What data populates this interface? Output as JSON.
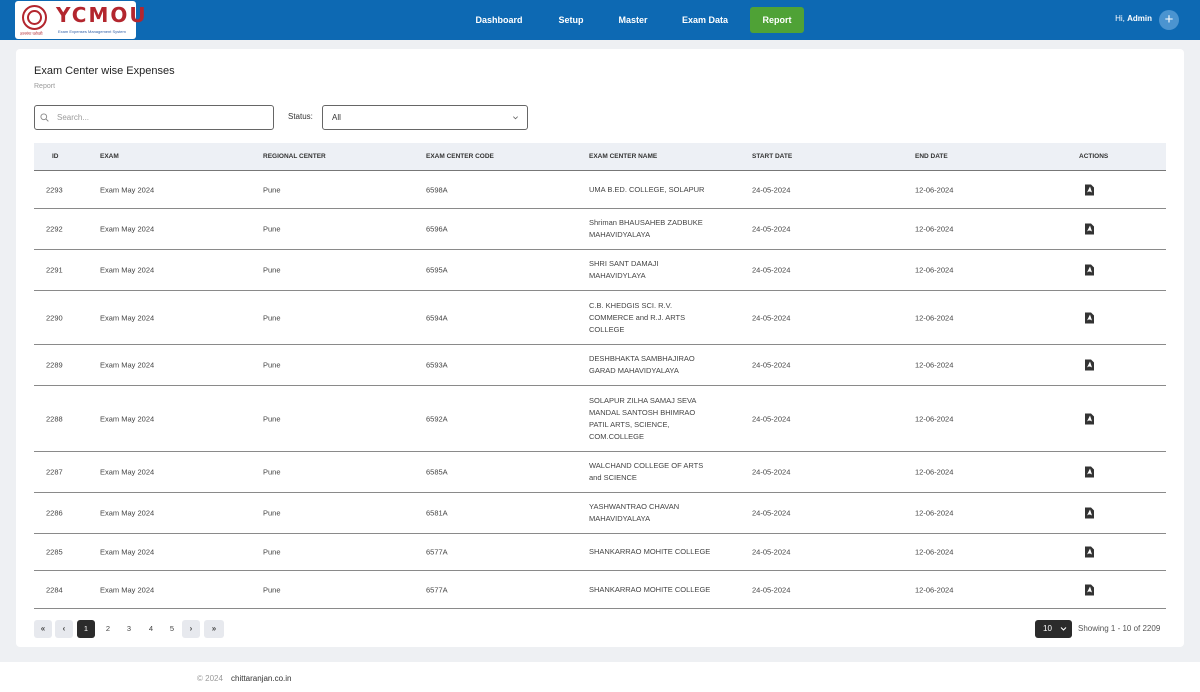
{
  "brand": {
    "title": "YCMOU",
    "subtitle": "Exam Expenses Management System",
    "devanagari": "ज्ञानगंगा घरोघरी",
    "accent": "#b3262e"
  },
  "nav": {
    "items": [
      {
        "label": "Dashboard"
      },
      {
        "label": "Setup"
      },
      {
        "label": "Master"
      },
      {
        "label": "Exam Data"
      },
      {
        "label": "Report"
      }
    ],
    "active": "Report",
    "greeting": "Hi,",
    "user": "Admin",
    "colors": {
      "bar": "#0d69b3",
      "active": "#4fa236"
    }
  },
  "page": {
    "title": "Exam Center wise Expenses",
    "subtitle": "Report"
  },
  "filters": {
    "search_placeholder": "Search...",
    "status_label": "Status:",
    "status_value": "All"
  },
  "table": {
    "headers": [
      "ID",
      "EXAM",
      "REGIONAL CENTER",
      "EXAM CENTER CODE",
      "EXAM CENTER NAME",
      "START DATE",
      "END DATE",
      "ACTIONS"
    ],
    "rows": [
      {
        "id": "2293",
        "exam": "Exam May 2024",
        "region": "Pune",
        "code": "6598A",
        "name": "UMA B.ED. COLLEGE, SOLAPUR",
        "start": "24-05-2024",
        "end": "12-06-2024",
        "action": "pdf-icon"
      },
      {
        "id": "2292",
        "exam": "Exam May 2024",
        "region": "Pune",
        "code": "6596A",
        "name": "Shriman BHAUSAHEB ZADBUKE MAHAVIDYALAYA",
        "start": "24-05-2024",
        "end": "12-06-2024",
        "action": "pdf-icon"
      },
      {
        "id": "2291",
        "exam": "Exam May 2024",
        "region": "Pune",
        "code": "6595A",
        "name": "SHRI SANT DAMAJI MAHAVIDYLAYA",
        "start": "24-05-2024",
        "end": "12-06-2024",
        "action": "pdf-icon"
      },
      {
        "id": "2290",
        "exam": "Exam May 2024",
        "region": "Pune",
        "code": "6594A",
        "name": "C.B. KHEDGIS SCI. R.V. COMMERCE and R.J. ARTS COLLEGE",
        "start": "24-05-2024",
        "end": "12-06-2024",
        "action": "pdf-icon"
      },
      {
        "id": "2289",
        "exam": "Exam May 2024",
        "region": "Pune",
        "code": "6593A",
        "name": "DESHBHAKTA SAMBHAJIRAO GARAD MAHAVIDYALAYA",
        "start": "24-05-2024",
        "end": "12-06-2024",
        "action": "pdf-icon"
      },
      {
        "id": "2288",
        "exam": "Exam May 2024",
        "region": "Pune",
        "code": "6592A",
        "name": "SOLAPUR ZILHA SAMAJ SEVA MANDAL SANTOSH BHIMRAO PATIL ARTS, SCIENCE, COM.COLLEGE",
        "start": "24-05-2024",
        "end": "12-06-2024",
        "action": "pdf-icon"
      },
      {
        "id": "2287",
        "exam": "Exam May 2024",
        "region": "Pune",
        "code": "6585A",
        "name": "WALCHAND COLLEGE OF ARTS and SCIENCE",
        "start": "24-05-2024",
        "end": "12-06-2024",
        "action": "pdf-icon"
      },
      {
        "id": "2286",
        "exam": "Exam May 2024",
        "region": "Pune",
        "code": "6581A",
        "name": "YASHWANTRAO CHAVAN MAHAVIDYALAYA",
        "start": "24-05-2024",
        "end": "12-06-2024",
        "action": "pdf-icon"
      },
      {
        "id": "2285",
        "exam": "Exam May 2024",
        "region": "Pune",
        "code": "6577A",
        "name": "SHANKARRAO MOHITE COLLEGE",
        "start": "24-05-2024",
        "end": "12-06-2024",
        "action": "pdf-icon"
      },
      {
        "id": "2284",
        "exam": "Exam May 2024",
        "region": "Pune",
        "code": "6577A",
        "name": "SHANKARRAO MOHITE COLLEGE",
        "start": "24-05-2024",
        "end": "12-06-2024",
        "action": "pdf-icon"
      }
    ]
  },
  "pagination": {
    "first": "«",
    "prev": "‹",
    "pages": [
      "1",
      "2",
      "3",
      "4",
      "5"
    ],
    "current": "1",
    "next": "›",
    "last": "»",
    "per_page": "10",
    "showing": "Showing 1 - 10 of 2209"
  },
  "footer": {
    "copyright": "© 2024",
    "link": "chittaranjan.co.in"
  }
}
